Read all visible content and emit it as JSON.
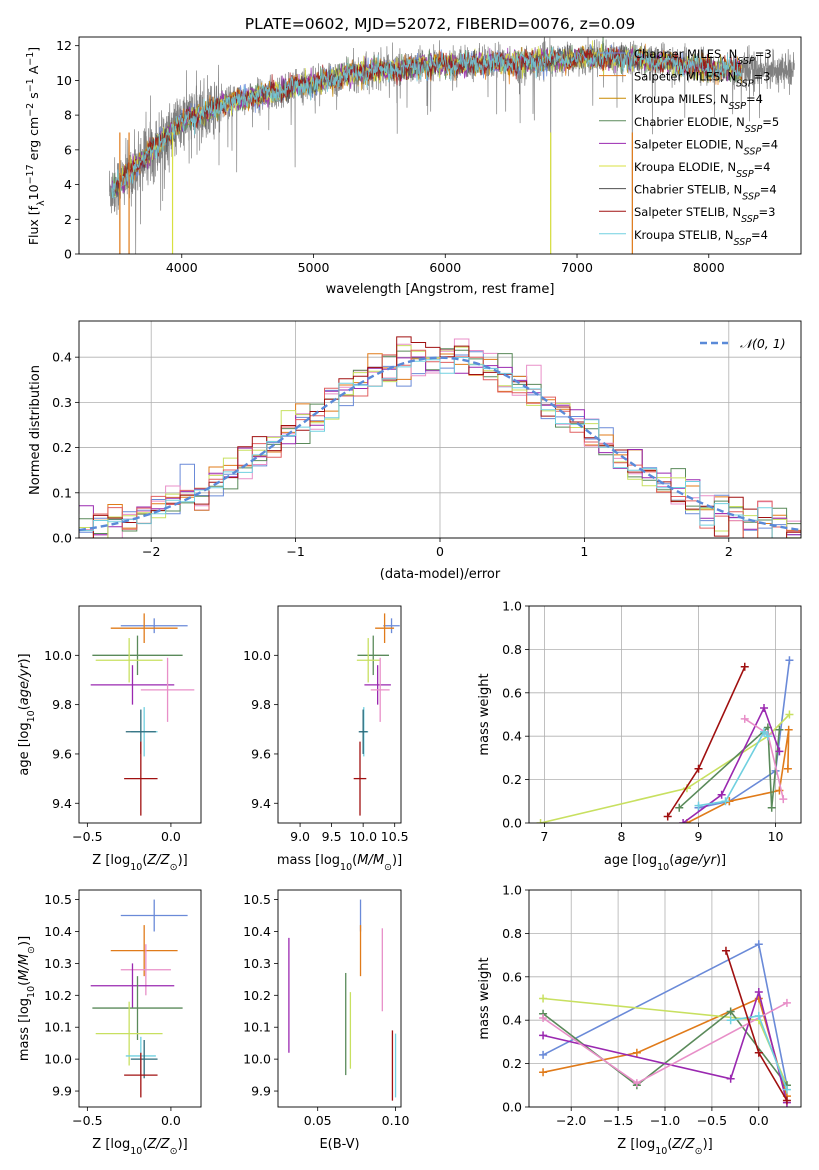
{
  "figure": {
    "title": "PLATE=0602, MJD=52072, FIBERID=0076, z=0.09"
  },
  "chart_data": [
    {
      "id": "spectrum",
      "type": "line",
      "title": "PLATE=0602, MJD=52072, FIBERID=0076, z=0.09",
      "xlabel": "wavelength [Angstrom, rest frame]",
      "ylabel": "Flux [fλ10⁻¹⁷ erg cm⁻² s⁻¹ A⁻¹]",
      "xlim": [
        3220,
        8700
      ],
      "ylim": [
        0,
        12.5
      ],
      "xticks": [
        4000,
        5000,
        6000,
        7000,
        8000
      ],
      "yticks": [
        0,
        2,
        4,
        6,
        8,
        10,
        12
      ],
      "legend_position": "right",
      "data": {
        "x_start": 3450,
        "x_end": 8650,
        "continuum": [
          [
            3450,
            3.6
          ],
          [
            3550,
            4.2
          ],
          [
            3650,
            5.1
          ],
          [
            3750,
            5.8
          ],
          [
            3850,
            6.6
          ],
          [
            3950,
            7.2
          ],
          [
            4050,
            7.9
          ],
          [
            4150,
            8.0
          ],
          [
            4300,
            8.6
          ],
          [
            4500,
            9.0
          ],
          [
            4700,
            9.3
          ],
          [
            4900,
            9.7
          ],
          [
            5100,
            10.0
          ],
          [
            5300,
            10.4
          ],
          [
            5500,
            10.6
          ],
          [
            5700,
            10.7
          ],
          [
            5900,
            10.9
          ],
          [
            6100,
            10.9
          ],
          [
            6300,
            11.0
          ],
          [
            6500,
            11.0
          ],
          [
            6700,
            11.1
          ],
          [
            6900,
            11.2
          ],
          [
            7100,
            11.3
          ],
          [
            7300,
            11.3
          ],
          [
            7500,
            11.2
          ],
          [
            7700,
            11.0
          ],
          [
            7900,
            10.8
          ],
          [
            8100,
            10.6
          ],
          [
            8300,
            10.6
          ],
          [
            8500,
            10.6
          ],
          [
            8650,
            10.5
          ]
        ],
        "observed_color": "#808080",
        "dips": [
          [
            3530,
            0
          ],
          [
            3600,
            0
          ],
          [
            3650,
            0
          ],
          [
            3840,
            2.5
          ],
          [
            3930,
            0
          ],
          [
            4860,
            5.0
          ],
          [
            5175,
            8.3
          ],
          [
            5890,
            8.2
          ],
          [
            6563,
            9.2
          ],
          [
            6800,
            0
          ],
          [
            7420,
            0
          ]
        ]
      },
      "series": [
        {
          "name": "Chabrier MILES, N_SSP=3",
          "color": "#6a8ad8"
        },
        {
          "name": "Salpeter MILES, N_SSP=3",
          "color": "#e07b1a"
        },
        {
          "name": "Kroupa MILES, N_SSP=4",
          "color": "#c98a00"
        },
        {
          "name": "Chabrier ELODIE, N_SSP=5",
          "color": "#5a8a5a"
        },
        {
          "name": "Salpeter ELODIE, N_SSP=4",
          "color": "#9a28b0"
        },
        {
          "name": "Kroupa ELODIE, N_SSP=4",
          "color": "#d8e040"
        },
        {
          "name": "Chabrier STELIB, N_SSP=4",
          "color": "#505050"
        },
        {
          "name": "Salpeter STELIB, N_SSP=3",
          "color": "#a01010"
        },
        {
          "name": "Kroupa STELIB, N_SSP=4",
          "color": "#70d0e0"
        }
      ],
      "legend_labels": [
        {
          "pre": "Chabrier MILES, N",
          "sub": "SSP",
          "post": "=3"
        },
        {
          "pre": "Salpeter MILES, N",
          "sub": "SSP",
          "post": "=3"
        },
        {
          "pre": "Kroupa MILES, N",
          "sub": "SSP",
          "post": "=4"
        },
        {
          "pre": "Chabrier ELODIE, N",
          "sub": "SSP",
          "post": "=5"
        },
        {
          "pre": "Salpeter ELODIE, N",
          "sub": "SSP",
          "post": "=4"
        },
        {
          "pre": "Kroupa ELODIE, N",
          "sub": "SSP",
          "post": "=4"
        },
        {
          "pre": "Chabrier STELIB, N",
          "sub": "SSP",
          "post": "=4"
        },
        {
          "pre": "Salpeter STELIB, N",
          "sub": "SSP",
          "post": "=3"
        },
        {
          "pre": "Kroupa STELIB, N",
          "sub": "SSP",
          "post": "=4"
        }
      ]
    },
    {
      "id": "residuals",
      "type": "histogram",
      "xlabel": "(data-model)/error",
      "ylabel": "Normed distribution",
      "xlim": [
        -2.5,
        2.5
      ],
      "ylim": [
        0,
        0.48
      ],
      "xticks": [
        -2,
        -1,
        0,
        1,
        2
      ],
      "yticks": [
        0.0,
        0.1,
        0.2,
        0.3,
        0.4
      ],
      "grid": true,
      "legend": "𝒩(0, 1)",
      "legend_position": "top-right",
      "bin_width": 0.1,
      "normal_color": "#5a8ad8",
      "series_colors": [
        "#6a8ad8",
        "#e07b1a",
        "#e88fc8",
        "#5a8a5a",
        "#9a28b0",
        "#c8e060",
        "#e06060",
        "#a01010",
        "#70d0e0"
      ]
    },
    {
      "id": "age-vs-Z",
      "type": "errorbar",
      "xlabel": "Z [log10(Z/Z⊙)]",
      "ylabel": "age  [log10(age/yr)]",
      "xlim": [
        -0.55,
        0.18
      ],
      "ylim": [
        9.32,
        10.2
      ],
      "xticks": [
        -0.5,
        0.0
      ],
      "yticks": [
        9.4,
        9.6,
        9.8,
        10.0
      ],
      "points": [
        {
          "x": -0.1,
          "xerr": 0.2,
          "y": 10.12,
          "yerr": 0.03,
          "color": "#6a8ad8"
        },
        {
          "x": -0.16,
          "xerr": 0.2,
          "y": 10.11,
          "yerr": 0.06,
          "color": "#e07b1a"
        },
        {
          "x": -0.2,
          "xerr": 0.27,
          "y": 10.0,
          "yerr": 0.08,
          "color": "#5a8a5a"
        },
        {
          "x": -0.25,
          "xerr": 0.2,
          "y": 9.98,
          "yerr": 0.09,
          "color": "#c8e060"
        },
        {
          "x": -0.23,
          "xerr": 0.25,
          "y": 9.88,
          "yerr": 0.08,
          "color": "#9a28b0"
        },
        {
          "x": -0.02,
          "xerr": 0.16,
          "y": 9.86,
          "yerr": 0.13,
          "color": "#e88fc8"
        },
        {
          "x": -0.16,
          "xerr": 0.08,
          "y": 9.69,
          "yerr": 0.1,
          "color": "#70d0e0"
        },
        {
          "x": -0.18,
          "xerr": 0.09,
          "y": 9.69,
          "yerr": 0.09,
          "color": "#2d6a7a"
        },
        {
          "x": -0.18,
          "xerr": 0.1,
          "y": 9.5,
          "yerr": 0.15,
          "color": "#a01010"
        }
      ]
    },
    {
      "id": "age-vs-mass",
      "type": "errorbar",
      "xlabel": "mass [log10(M/M⊙)]",
      "ylabel": "",
      "xlim": [
        8.65,
        10.6
      ],
      "ylim": [
        9.32,
        10.2
      ],
      "xticks": [
        9.0,
        9.5,
        10.0,
        10.5
      ],
      "yticks": [
        9.4,
        9.6,
        9.8,
        10.0
      ],
      "points": [
        {
          "x": 10.45,
          "xerr": 0.13,
          "y": 10.12,
          "yerr": 0.03,
          "color": "#6a8ad8"
        },
        {
          "x": 10.34,
          "xerr": 0.15,
          "y": 10.11,
          "yerr": 0.06,
          "color": "#e07b1a"
        },
        {
          "x": 10.16,
          "xerr": 0.25,
          "y": 10.0,
          "yerr": 0.08,
          "color": "#5a8a5a"
        },
        {
          "x": 10.08,
          "xerr": 0.18,
          "y": 9.98,
          "yerr": 0.09,
          "color": "#c8e060"
        },
        {
          "x": 10.23,
          "xerr": 0.21,
          "y": 9.88,
          "yerr": 0.08,
          "color": "#9a28b0"
        },
        {
          "x": 10.27,
          "xerr": 0.15,
          "y": 9.86,
          "yerr": 0.13,
          "color": "#e88fc8"
        },
        {
          "x": 10.01,
          "xerr": 0.07,
          "y": 9.69,
          "yerr": 0.1,
          "color": "#70d0e0"
        },
        {
          "x": 10.0,
          "xerr": 0.07,
          "y": 9.69,
          "yerr": 0.09,
          "color": "#2d6a7a"
        },
        {
          "x": 9.95,
          "xerr": 0.1,
          "y": 9.5,
          "yerr": 0.15,
          "color": "#a01010"
        }
      ]
    },
    {
      "id": "massweight-vs-age",
      "type": "line",
      "xlabel": "age  [log10(age/yr)]",
      "ylabel": "mass weight",
      "xlim": [
        6.8,
        10.33
      ],
      "ylim": [
        0,
        1
      ],
      "xticks": [
        7,
        8,
        9,
        10
      ],
      "yticks": [
        0.0,
        0.2,
        0.4,
        0.6,
        0.8,
        1.0
      ],
      "grid": true,
      "series": [
        {
          "color": "#6a8ad8",
          "x": [
            9.0,
            9.4,
            10.0,
            10.18
          ],
          "y": [
            0.07,
            0.1,
            0.24,
            0.75
          ]
        },
        {
          "color": "#e07b1a",
          "x": [
            8.85,
            9.4,
            10.05,
            10.17,
            10.16
          ],
          "y": [
            0.0,
            0.1,
            0.15,
            0.43,
            0.25
          ]
        },
        {
          "color": "#c8e060",
          "x": [
            6.95,
            8.85,
            9.9,
            10.18
          ],
          "y": [
            0.0,
            0.16,
            0.4,
            0.5
          ]
        },
        {
          "color": "#5a8a5a",
          "x": [
            8.75,
            9.9,
            9.95,
            10.05
          ],
          "y": [
            0.07,
            0.44,
            0.07,
            0.43
          ]
        },
        {
          "color": "#9a28b0",
          "x": [
            8.8,
            9.3,
            9.85,
            10.05
          ],
          "y": [
            0.0,
            0.13,
            0.53,
            0.33
          ]
        },
        {
          "color": "#e88fc8",
          "x": [
            9.6,
            9.9,
            10.1
          ],
          "y": [
            0.48,
            0.41,
            0.11
          ]
        },
        {
          "color": "#70d0e0",
          "x": [
            9.0,
            9.35,
            9.85,
            9.9
          ],
          "y": [
            0.08,
            0.1,
            0.42,
            0.4
          ]
        },
        {
          "color": "#a01010",
          "x": [
            8.6,
            9.0,
            9.6
          ],
          "y": [
            0.03,
            0.25,
            0.72
          ]
        }
      ]
    },
    {
      "id": "mass-vs-Z",
      "type": "errorbar",
      "xlabel": "Z [log10(Z/Z⊙)]",
      "ylabel": "mass [log10(M/M⊙)]",
      "xlim": [
        -0.55,
        0.18
      ],
      "ylim": [
        9.85,
        10.53
      ],
      "xticks": [
        -0.5,
        0.0
      ],
      "yticks": [
        9.9,
        10.0,
        10.1,
        10.2,
        10.3,
        10.4,
        10.5
      ],
      "points": [
        {
          "x": -0.1,
          "xerr": 0.2,
          "y": 10.45,
          "yerr": 0.05,
          "color": "#6a8ad8"
        },
        {
          "x": -0.16,
          "xerr": 0.2,
          "y": 10.34,
          "yerr": 0.08,
          "color": "#e07b1a"
        },
        {
          "x": -0.15,
          "xerr": 0.15,
          "y": 10.28,
          "yerr": 0.08,
          "color": "#e88fc8"
        },
        {
          "x": -0.23,
          "xerr": 0.25,
          "y": 10.23,
          "yerr": 0.07,
          "color": "#9a28b0"
        },
        {
          "x": -0.2,
          "xerr": 0.27,
          "y": 10.16,
          "yerr": 0.1,
          "color": "#5a8a5a"
        },
        {
          "x": -0.25,
          "xerr": 0.2,
          "y": 10.08,
          "yerr": 0.1,
          "color": "#c8e060"
        },
        {
          "x": -0.18,
          "xerr": 0.09,
          "y": 10.01,
          "yerr": 0.06,
          "color": "#70d0e0"
        },
        {
          "x": -0.16,
          "xerr": 0.08,
          "y": 10.0,
          "yerr": 0.06,
          "color": "#2d6a7a"
        },
        {
          "x": -0.18,
          "xerr": 0.1,
          "y": 9.95,
          "yerr": 0.07,
          "color": "#a01010"
        }
      ]
    },
    {
      "id": "mass-vs-ebv",
      "type": "errorbar",
      "xlabel": "E(B-V)",
      "ylabel": "",
      "xlim": [
        0.0245,
        0.1035
      ],
      "ylim": [
        9.85,
        10.53
      ],
      "xticks": [
        0.05,
        0.1
      ],
      "yticks": [
        9.9,
        10.0,
        10.1,
        10.2,
        10.3,
        10.4,
        10.5
      ],
      "points": [
        {
          "x": 0.0775,
          "y": 10.45,
          "yerr": 0.05,
          "color": "#6a8ad8"
        },
        {
          "x": 0.0775,
          "y": 10.34,
          "yerr": 0.08,
          "color": "#e07b1a"
        },
        {
          "x": 0.0915,
          "y": 10.28,
          "yerr": 0.13,
          "color": "#e88fc8"
        },
        {
          "x": 0.0315,
          "y": 10.2,
          "yerr": 0.18,
          "color": "#9a28b0"
        },
        {
          "x": 0.068,
          "y": 10.11,
          "yerr": 0.16,
          "color": "#5a8a5a"
        },
        {
          "x": 0.071,
          "y": 10.09,
          "yerr": 0.12,
          "color": "#c8e060"
        },
        {
          "x": 0.098,
          "y": 9.98,
          "yerr": 0.11,
          "color": "#a01010"
        },
        {
          "x": 0.1,
          "y": 9.98,
          "yerr": 0.1,
          "color": "#70d0e0"
        }
      ]
    },
    {
      "id": "massweight-vs-Z",
      "type": "line",
      "xlabel": "Z [log10(Z/Z⊙)]",
      "ylabel": "mass weight",
      "xlim": [
        -2.45,
        0.45
      ],
      "ylim": [
        0,
        1
      ],
      "xticks": [
        -2.0,
        -1.5,
        -1.0,
        -0.5,
        0.0
      ],
      "yticks": [
        0.0,
        0.2,
        0.4,
        0.6,
        0.8,
        1.0
      ],
      "grid": true,
      "series": [
        {
          "color": "#6a8ad8",
          "x": [
            -2.3,
            0.0,
            0.3
          ],
          "y": [
            0.24,
            0.75,
            0.1
          ]
        },
        {
          "color": "#e07b1a",
          "x": [
            -2.3,
            -1.3,
            0.0,
            0.3
          ],
          "y": [
            0.16,
            0.25,
            0.5,
            0.05
          ]
        },
        {
          "color": "#c8e060",
          "x": [
            -2.3,
            0.0,
            0.3
          ],
          "y": [
            0.5,
            0.4,
            0.1
          ]
        },
        {
          "color": "#5a8a5a",
          "x": [
            -2.3,
            -1.3,
            -0.3,
            0.3
          ],
          "y": [
            0.43,
            0.1,
            0.44,
            0.1
          ]
        },
        {
          "color": "#9a28b0",
          "x": [
            -2.3,
            -0.3,
            0.0,
            0.3
          ],
          "y": [
            0.33,
            0.13,
            0.53,
            0.02
          ]
        },
        {
          "color": "#e88fc8",
          "x": [
            -2.3,
            -1.3,
            0.3
          ],
          "y": [
            0.41,
            0.11,
            0.48
          ]
        },
        {
          "color": "#70d0e0",
          "x": [
            -0.3,
            0.0,
            0.3
          ],
          "y": [
            0.4,
            0.42,
            0.08
          ]
        },
        {
          "color": "#a01010",
          "x": [
            -0.35,
            0.0,
            0.3
          ],
          "y": [
            0.72,
            0.25,
            0.03
          ]
        }
      ]
    }
  ]
}
